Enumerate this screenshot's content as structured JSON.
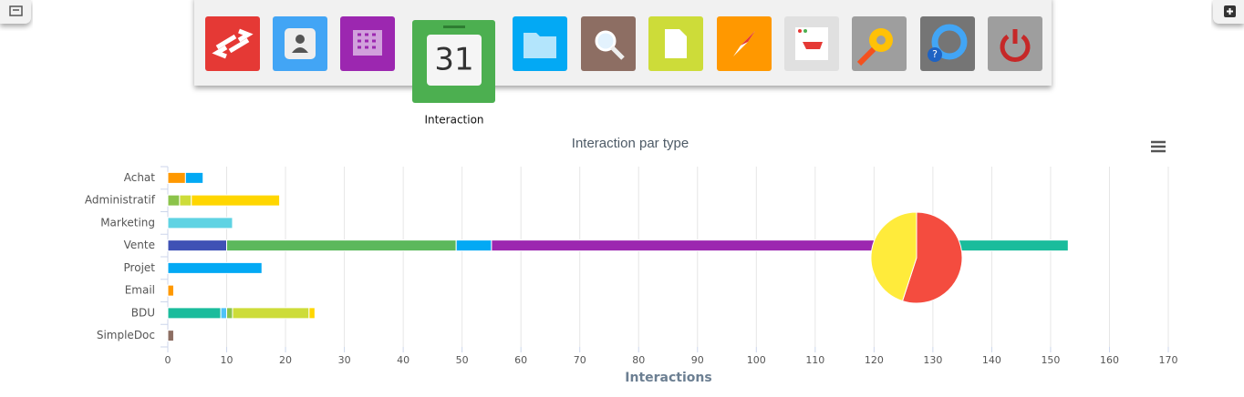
{
  "dock": {
    "active_label": "Interaction"
  },
  "chart_data": [
    {
      "type": "bar",
      "orientation": "horizontal",
      "stacked": true,
      "title": "Interaction par type",
      "x_label": "Interactions",
      "categories": [
        "Achat",
        "Administratif",
        "Marketing",
        "Vente",
        "Projet",
        "Email",
        "BDU",
        "SimpleDoc"
      ],
      "series": [
        {
          "color": "#ff9800",
          "values": [
            3,
            null,
            null,
            null,
            null,
            1,
            null,
            null
          ]
        },
        {
          "color": "#3f51b5",
          "values": [
            null,
            null,
            null,
            10,
            null,
            null,
            null,
            null
          ]
        },
        {
          "color": "#1abc9c",
          "values": [
            null,
            null,
            null,
            null,
            null,
            null,
            9,
            null
          ]
        },
        {
          "color": "#5fd3e3",
          "values": [
            null,
            null,
            11,
            null,
            null,
            null,
            null,
            null
          ]
        },
        {
          "color": "#8d6e63",
          "values": [
            null,
            null,
            null,
            null,
            null,
            null,
            null,
            1
          ]
        },
        {
          "color": "#4fc3f7",
          "values": [
            null,
            null,
            null,
            null,
            null,
            null,
            1,
            null
          ]
        },
        {
          "color": "#8bc34a",
          "values": [
            null,
            2,
            null,
            null,
            null,
            null,
            1,
            null
          ]
        },
        {
          "color": "#5cb85c",
          "values": [
            null,
            null,
            null,
            39,
            null,
            null,
            null,
            null
          ]
        },
        {
          "color": "#03a9f4",
          "values": [
            3,
            null,
            null,
            6,
            16,
            null,
            null,
            null
          ]
        },
        {
          "color": "#cddc39",
          "values": [
            null,
            2,
            null,
            null,
            null,
            null,
            13,
            null
          ]
        },
        {
          "color": "#ffd600",
          "values": [
            null,
            15,
            null,
            null,
            null,
            null,
            1,
            null
          ]
        },
        {
          "color": "#9c27b0",
          "values": [
            null,
            null,
            null,
            72,
            null,
            null,
            null,
            null
          ]
        },
        {
          "color": "#1abc9c",
          "values": [
            null,
            null,
            null,
            26,
            null,
            null,
            null,
            null
          ]
        }
      ],
      "xlim": [
        0,
        170
      ],
      "xticks": [
        0,
        10,
        20,
        30,
        40,
        50,
        60,
        70,
        80,
        90,
        100,
        110,
        120,
        130,
        140,
        150,
        160,
        170
      ],
      "grid": true
    },
    {
      "type": "pie",
      "values": [
        55,
        45
      ],
      "colors": [
        "#f44c3f",
        "#ffeb3b"
      ]
    }
  ]
}
